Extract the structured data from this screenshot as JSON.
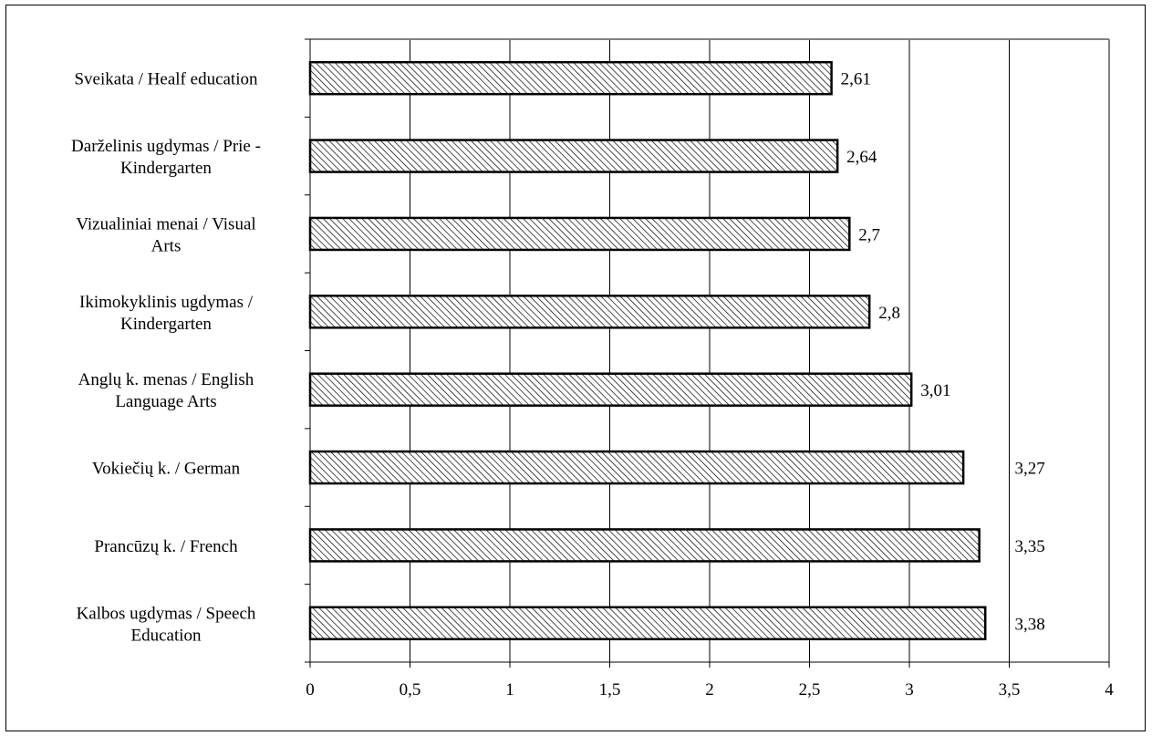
{
  "chart_data": {
    "type": "bar",
    "orientation": "horizontal",
    "categories": [
      "Sveikata / Healf education",
      "Darželinis ugdymas / Prie - Kindergarten",
      "Vizualiniai menai / Visual Arts",
      "Ikimokyklinis ugdymas / Kindergarten",
      "Anglų k. menas / English Language Arts",
      "Vokiečių k. / German",
      "Prancūzų k. / French",
      "Kalbos ugdymas / Speech Education"
    ],
    "category_lines": [
      [
        "Sveikata / Healf education"
      ],
      [
        "Darželinis ugdymas / Prie -",
        "Kindergarten"
      ],
      [
        "Vizualiniai menai / Visual",
        "Arts"
      ],
      [
        "Ikimokyklinis ugdymas /",
        "Kindergarten"
      ],
      [
        "Anglų k. menas / English",
        "Language Arts"
      ],
      [
        "Vokiečių k. / German"
      ],
      [
        "Prancūzų k. / French"
      ],
      [
        "Kalbos ugdymas / Speech",
        "Education"
      ]
    ],
    "values": [
      2.61,
      2.64,
      2.7,
      2.8,
      3.01,
      3.27,
      3.35,
      3.38
    ],
    "value_labels": [
      "2,61",
      "2,64",
      "2,7",
      "2,8",
      "3,01",
      "3,27",
      "3,35",
      "3,38"
    ],
    "xlim": [
      0,
      4
    ],
    "x_ticks": [
      0,
      0.5,
      1,
      1.5,
      2,
      2.5,
      3,
      3.5,
      4
    ],
    "x_tick_labels": [
      "0",
      "0,5",
      "1",
      "1,5",
      "2",
      "2,5",
      "3",
      "3,5",
      "4"
    ],
    "title": "",
    "xlabel": "",
    "ylabel": "",
    "grid": "vertical",
    "legend": "none",
    "bar_pattern": "diagonal-hatch",
    "colors": {
      "bar_fill": "#ffffff",
      "bar_hatch": "#000000",
      "bar_border": "#000000",
      "grid": "#000000",
      "plot_border": "#808080"
    }
  }
}
